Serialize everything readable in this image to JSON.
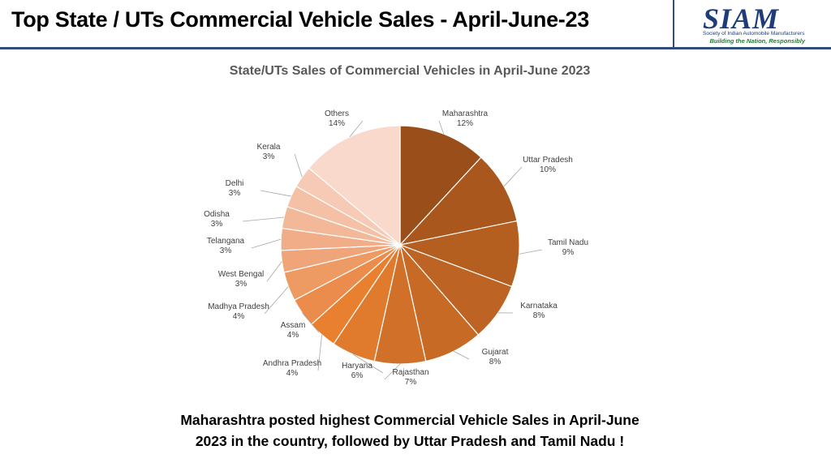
{
  "header": {
    "title": "Top State / UTs Commercial Vehicle Sales - April-June-23",
    "logo": {
      "word": "SIAM",
      "org": "Society of Indian Automobile Manufacturers",
      "tagline": "Building the Nation, Responsibly"
    }
  },
  "footer": {
    "line1": "Maharashtra posted highest Commercial Vehicle Sales in April-June",
    "line2": "2023 in the country, followed by Uttar Pradesh and Tamil Nadu !"
  },
  "chart_data": {
    "type": "pie",
    "title": "State/UTs Sales of Commercial Vehicles in April-June 2023",
    "start_angle_deg": 0,
    "direction": "clockwise",
    "slices": [
      {
        "label": "Maharashtra",
        "value": 12,
        "display": "12%",
        "color": "#9a4e1a"
      },
      {
        "label": "Uttar Pradesh",
        "value": 10,
        "display": "10%",
        "color": "#a9571d"
      },
      {
        "label": "Tamil Nadu",
        "value": 9,
        "display": "9%",
        "color": "#b45e20"
      },
      {
        "label": "Karnataka",
        "value": 8,
        "display": "8%",
        "color": "#bd6424"
      },
      {
        "label": "Gujarat",
        "value": 8,
        "display": "8%",
        "color": "#c76a26"
      },
      {
        "label": "Rajasthan",
        "value": 7,
        "display": "7%",
        "color": "#d07029"
      },
      {
        "label": "Haryana",
        "value": 6,
        "display": "6%",
        "color": "#e07a2d"
      },
      {
        "label": "Andhra Pradesh",
        "value": 4,
        "display": "4%",
        "color": "#e9802f"
      },
      {
        "label": "Assam",
        "value": 4,
        "display": "4%",
        "color": "#ec8c4c"
      },
      {
        "label": "Madhya Pradesh",
        "value": 4,
        "display": "4%",
        "color": "#ee9a63"
      },
      {
        "label": "West Bengal",
        "value": 3,
        "display": "3%",
        "color": "#efa47a"
      },
      {
        "label": "Telangana",
        "value": 3,
        "display": "3%",
        "color": "#f0ad88"
      },
      {
        "label": "Odisha",
        "value": 3,
        "display": "3%",
        "color": "#f2b897"
      },
      {
        "label": "Delhi",
        "value": 3,
        "display": "3%",
        "color": "#f4c1a6"
      },
      {
        "label": "Kerala",
        "value": 3,
        "display": "3%",
        "color": "#f6cab4"
      },
      {
        "label": "Others",
        "value": 14,
        "display": "14%",
        "color": "#f8d9cb"
      }
    ]
  }
}
